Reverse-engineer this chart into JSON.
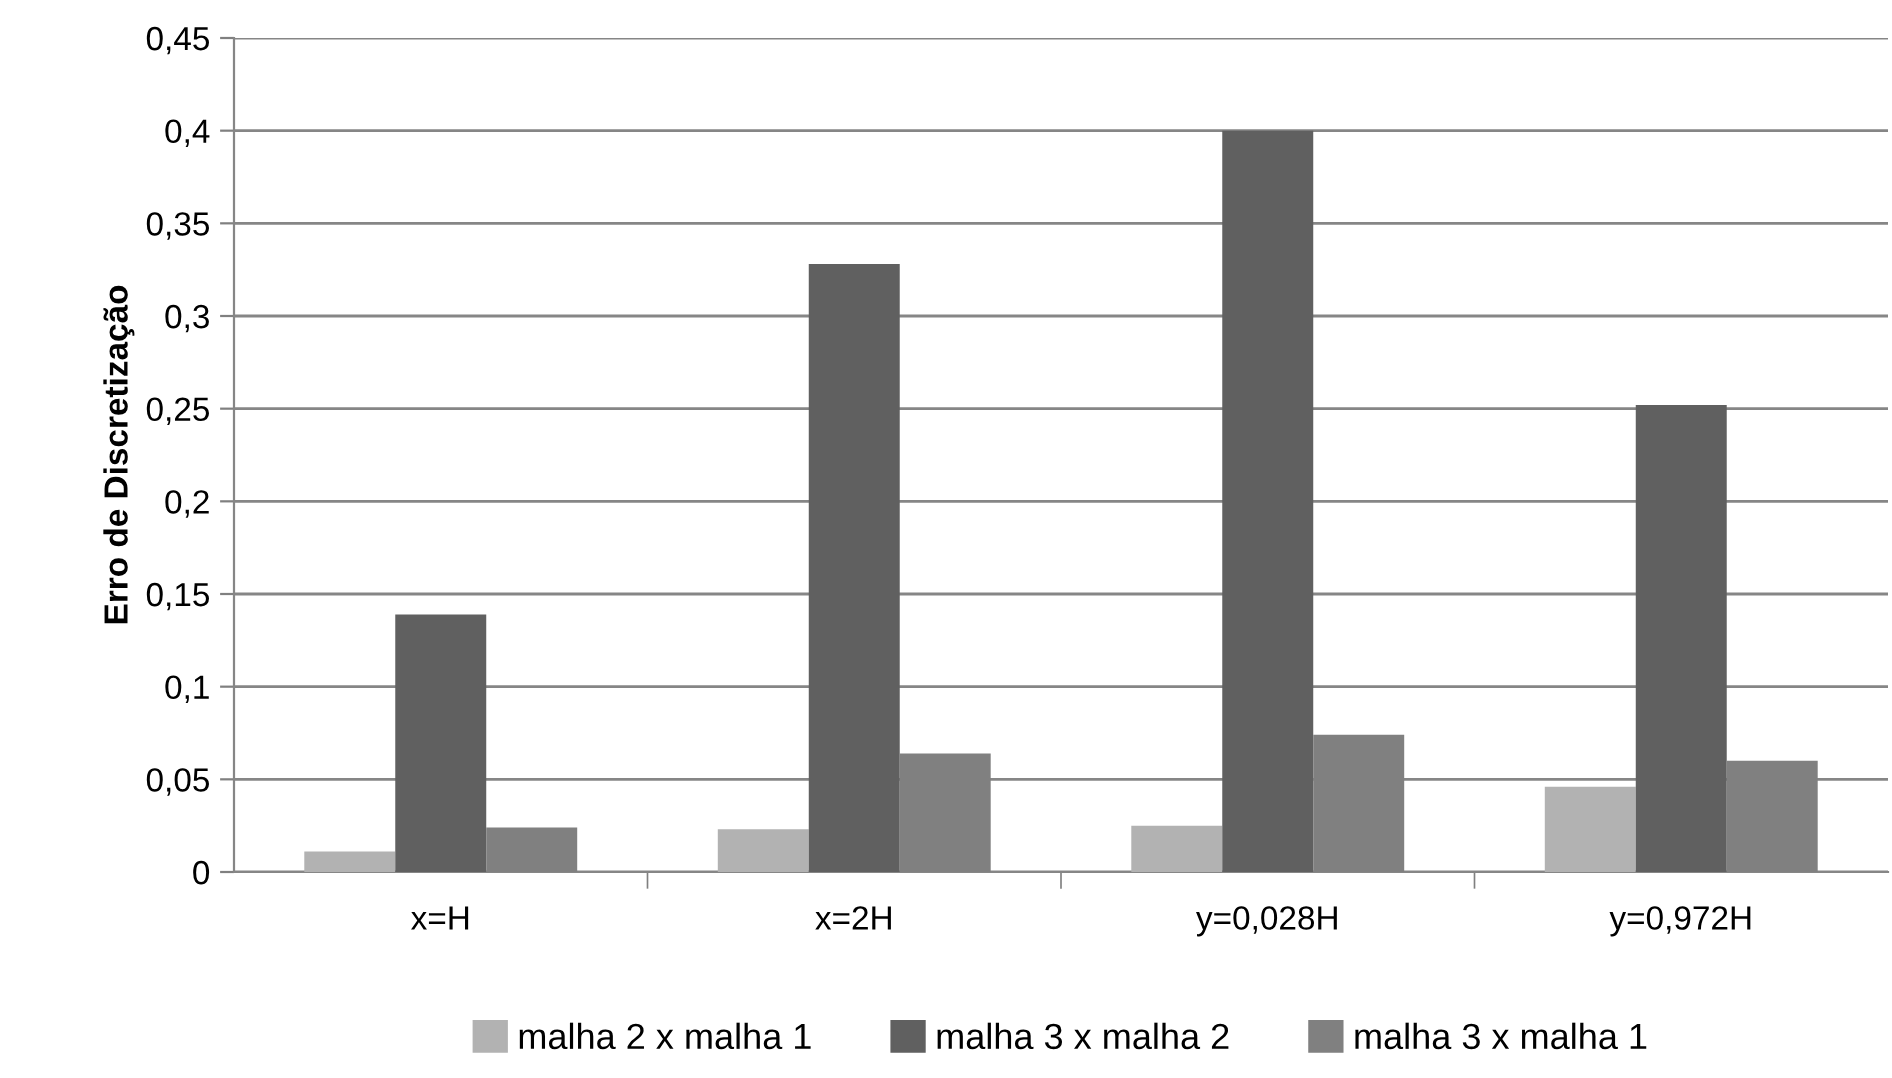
{
  "chart_data": {
    "type": "bar",
    "ylabel": "Erro de Discretização",
    "categories": [
      "x=H",
      "x=2H",
      "y=0,028H",
      "y=0,972H"
    ],
    "series": [
      {
        "name": "malha 2 x malha 1",
        "color": "#b2b2b2",
        "values": [
          0.011,
          0.023,
          0.025,
          0.046
        ]
      },
      {
        "name": "malha 3 x malha 2",
        "color": "#606060",
        "values": [
          0.139,
          0.328,
          0.4,
          0.252
        ]
      },
      {
        "name": "malha 3 x malha 1",
        "color": "#808080",
        "values": [
          0.024,
          0.064,
          0.074,
          0.06
        ]
      }
    ],
    "ylim": [
      0,
      0.45
    ],
    "yticks": [
      0,
      {
        "value": 0.05,
        "label": "0,05"
      },
      {
        "value": 0.1,
        "label": "0,1"
      },
      {
        "value": 0.15,
        "label": "0,15"
      },
      {
        "value": 0.2,
        "label": "0,2"
      },
      {
        "value": 0.25,
        "label": "0,25"
      },
      {
        "value": 0.3,
        "label": "0,3"
      },
      {
        "value": 0.35,
        "label": "0,35"
      },
      {
        "value": 0.4,
        "label": "0,4"
      },
      {
        "value": 0.45,
        "label": "0,45"
      }
    ],
    "grid": "y",
    "legend": "bottom"
  }
}
